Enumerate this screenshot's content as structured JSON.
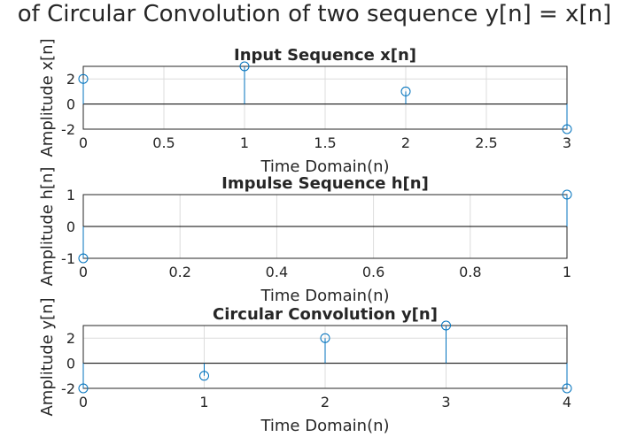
{
  "figure": {
    "title": "of Circular Convolution of two sequence y[n] = x[n]"
  },
  "colors": {
    "stem": "#0072bd",
    "axis_text": "#262626",
    "grid": "#dcdcdc",
    "zero_line": "#000000"
  },
  "chart_data": [
    {
      "type": "stem",
      "title": "Input Sequence x[n]",
      "xlabel": "Time Domain(n)",
      "ylabel": "Amplitude x[n]",
      "x": [
        0,
        1,
        2,
        3
      ],
      "y": [
        2,
        3,
        1,
        -2
      ],
      "xlim": [
        0,
        3
      ],
      "ylim": [
        -2,
        3
      ],
      "xticks": [
        0,
        0.5,
        1,
        1.5,
        2,
        2.5,
        3
      ],
      "xticklabels": [
        "0",
        "0.5",
        "1",
        "1.5",
        "2",
        "2.5",
        "3"
      ],
      "yticks": [
        -2,
        0,
        2
      ],
      "yticklabels": [
        "-2",
        "0",
        "2"
      ],
      "grid": true
    },
    {
      "type": "stem",
      "title": "Impulse Sequence h[n]",
      "xlabel": "Time Domain(n)",
      "ylabel": "Amplitude h[n]",
      "x": [
        0,
        1
      ],
      "y": [
        -1,
        1
      ],
      "xlim": [
        0,
        1
      ],
      "ylim": [
        -1,
        1
      ],
      "xticks": [
        0,
        0.2,
        0.4,
        0.6,
        0.8,
        1
      ],
      "xticklabels": [
        "0",
        "0.2",
        "0.4",
        "0.6",
        "0.8",
        "1"
      ],
      "yticks": [
        -1,
        0,
        1
      ],
      "yticklabels": [
        "-1",
        "0",
        "1"
      ],
      "grid": true
    },
    {
      "type": "stem",
      "title": "Circular Convolution y[n]",
      "xlabel": "Time Domain(n)",
      "ylabel": "Amplitude y[n]",
      "x": [
        0,
        1,
        2,
        3,
        4
      ],
      "y": [
        -2,
        -1,
        2,
        3,
        -2
      ],
      "xlim": [
        0,
        4
      ],
      "ylim": [
        -2,
        3
      ],
      "xticks": [
        0,
        1,
        2,
        3,
        4
      ],
      "xticklabels": [
        "0",
        "1",
        "2",
        "3",
        "4"
      ],
      "yticks": [
        -2,
        0,
        2
      ],
      "yticklabels": [
        "-2",
        "0",
        "2"
      ],
      "grid": true
    }
  ]
}
